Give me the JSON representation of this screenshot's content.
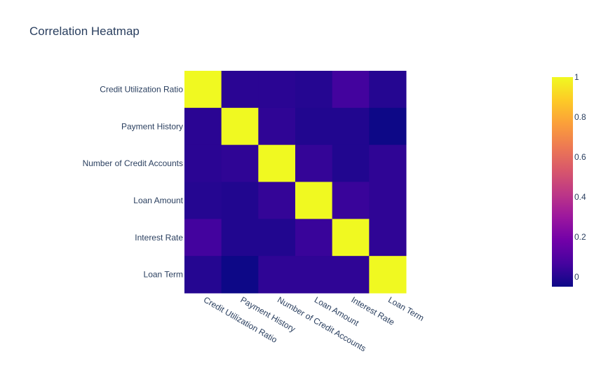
{
  "chart_data": {
    "type": "heatmap",
    "title": "Correlation Heatmap",
    "x": [
      "Credit Utilization Ratio",
      "Payment History",
      "Number of Credit Accounts",
      "Loan Amount",
      "Interest Rate",
      "Loan Term"
    ],
    "y": [
      "Credit Utilization Ratio",
      "Payment History",
      "Number of Credit Accounts",
      "Loan Amount",
      "Interest Rate",
      "Loan Term"
    ],
    "z": [
      [
        1.0,
        0.01,
        0.01,
        0.0,
        0.06,
        0.0
      ],
      [
        0.01,
        1.0,
        0.02,
        -0.01,
        -0.01,
        -0.05
      ],
      [
        0.01,
        0.02,
        1.0,
        0.03,
        -0.01,
        0.02
      ],
      [
        0.0,
        -0.01,
        0.03,
        1.0,
        0.04,
        0.02
      ],
      [
        0.06,
        -0.01,
        -0.01,
        0.04,
        1.0,
        0.02
      ],
      [
        0.0,
        -0.05,
        0.02,
        0.02,
        0.02,
        1.0
      ]
    ],
    "colorscale": "plasma",
    "zmin": -0.05,
    "zmax": 1.0,
    "colorbar": {
      "ticks": [
        0,
        0.2,
        0.4,
        0.6,
        0.8,
        1
      ],
      "tick_labels": [
        "0",
        "0.2",
        "0.4",
        "0.6",
        "0.8",
        "1"
      ]
    },
    "xlabel": "",
    "ylabel": ""
  }
}
